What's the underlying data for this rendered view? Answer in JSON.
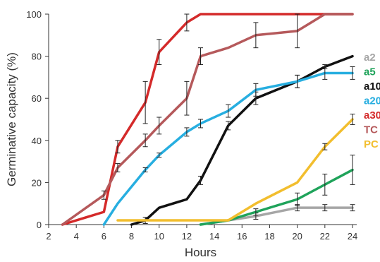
{
  "chart_data": {
    "type": "line",
    "xlabel": "Hours",
    "ylabel": "Germinative capacity (%)",
    "xlim": [
      2,
      24
    ],
    "ylim": [
      0,
      100
    ],
    "xticks": [
      2,
      4,
      6,
      8,
      10,
      12,
      14,
      16,
      18,
      20,
      22,
      24
    ],
    "yticks": [
      0,
      20,
      40,
      60,
      80,
      100
    ],
    "grid": false,
    "legend_position": "right",
    "series": [
      {
        "name": "a2",
        "color": "#a6a6a6",
        "points": [
          [
            13,
            0
          ],
          [
            15,
            2
          ],
          [
            17,
            4
          ],
          [
            20,
            8
          ],
          [
            22,
            8
          ],
          [
            24,
            8
          ]
        ],
        "errors": [
          0,
          0,
          1.5,
          1.5,
          1.5,
          1.5
        ]
      },
      {
        "name": "a5",
        "color": "#1fa35a",
        "points": [
          [
            13,
            0
          ],
          [
            15,
            2
          ],
          [
            17,
            6
          ],
          [
            20,
            12
          ],
          [
            22,
            19
          ],
          [
            24,
            26
          ]
        ],
        "errors": [
          0,
          0,
          1.5,
          3,
          5,
          7
        ]
      },
      {
        "name": "a10",
        "color": "#111111",
        "points": [
          [
            8,
            0
          ],
          [
            9,
            2
          ],
          [
            10,
            8
          ],
          [
            12,
            12
          ],
          [
            13,
            21
          ],
          [
            15,
            47
          ],
          [
            17,
            60
          ],
          [
            20,
            68
          ],
          [
            22,
            75
          ],
          [
            24,
            80
          ]
        ],
        "errors": [
          0,
          1.5,
          0,
          0,
          2,
          2,
          3,
          3,
          1,
          0
        ]
      },
      {
        "name": "a20",
        "color": "#27aee0",
        "points": [
          [
            6,
            0
          ],
          [
            7,
            10
          ],
          [
            9,
            26
          ],
          [
            10,
            33
          ],
          [
            12,
            44
          ],
          [
            13,
            48
          ],
          [
            15,
            54
          ],
          [
            17,
            64
          ],
          [
            20,
            68
          ],
          [
            22,
            72
          ],
          [
            24,
            72
          ]
        ],
        "errors": [
          0,
          0,
          1,
          1,
          2,
          2,
          3,
          3,
          3,
          3,
          3
        ]
      },
      {
        "name": "a30",
        "color": "#d42a2a",
        "points": [
          [
            3,
            0
          ],
          [
            6,
            6
          ],
          [
            7,
            37
          ],
          [
            9,
            58
          ],
          [
            10,
            82
          ],
          [
            12,
            96
          ],
          [
            13,
            100
          ],
          [
            24,
            100
          ]
        ],
        "errors": [
          0,
          0,
          3,
          10,
          6,
          4,
          0,
          0
        ]
      },
      {
        "name": "TC",
        "color": "#b5595b",
        "points": [
          [
            3,
            0
          ],
          [
            6,
            14
          ],
          [
            7,
            27
          ],
          [
            9,
            40
          ],
          [
            10,
            47
          ],
          [
            12,
            60
          ],
          [
            13,
            80
          ],
          [
            15,
            84
          ],
          [
            17,
            90
          ],
          [
            20,
            92
          ],
          [
            22,
            100
          ],
          [
            24,
            100
          ]
        ],
        "errors": [
          0,
          2,
          2,
          3,
          4,
          8,
          4,
          0,
          6,
          8,
          0,
          0
        ]
      },
      {
        "name": "PC",
        "color": "#f2be2e",
        "points": [
          [
            7,
            2
          ],
          [
            15,
            2
          ],
          [
            17,
            10
          ],
          [
            20,
            20
          ],
          [
            22,
            37
          ],
          [
            24,
            50
          ]
        ],
        "errors": [
          0,
          0,
          0,
          0,
          1.5,
          2.5
        ]
      }
    ]
  }
}
